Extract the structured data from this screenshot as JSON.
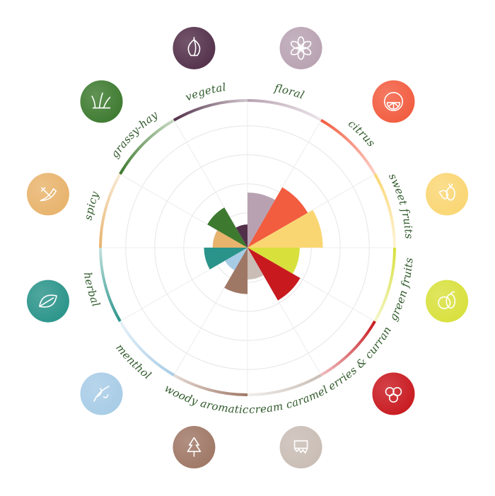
{
  "chart_data": {
    "type": "polar-area",
    "radial_range": [
      0,
      5
    ],
    "grid": true,
    "categories": [
      "floral",
      "citrus",
      "sweet fruits",
      "green fruits",
      "berries & currant",
      "cream caramel",
      "woody aromatic",
      "menthol",
      "herbal",
      "spicy",
      "grassy-hay",
      "vegetal"
    ],
    "values": [
      1.9,
      2.4,
      2.6,
      1.8,
      2.1,
      1.1,
      1.6,
      0.9,
      1.5,
      1.2,
      1.6,
      0.8
    ],
    "colors": [
      "#b8a2b2",
      "#f25c3f",
      "#fad673",
      "#d8e03c",
      "#c8191f",
      "#c9bdb5",
      "#9f7765",
      "#a7cce6",
      "#2a948a",
      "#e8b36c",
      "#3d7a2f",
      "#53304a"
    ],
    "icons": [
      "flower-icon",
      "lemon-slice-icon",
      "strawberry-pineapple-icon",
      "apple-pear-icon",
      "berries-icon",
      "caramel-block-icon",
      "pine-tree-icon",
      "menthol-leaf-icon",
      "herb-leaf-icon",
      "chili-pepper-icon",
      "grass-icon",
      "onion-icon"
    ]
  }
}
